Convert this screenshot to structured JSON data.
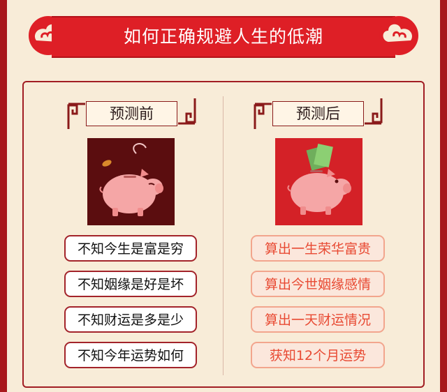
{
  "banner": {
    "title": "如何正确规避人生的低潮"
  },
  "before": {
    "heading": "预测前",
    "items": [
      "不知今生是富是穷",
      "不知姻缘是好是坏",
      "不知财运是多是少",
      "不知今年运势如何"
    ]
  },
  "after": {
    "heading": "预测后",
    "items": [
      "算出一生荣华富贵",
      "算出今世姻缘感情",
      "算出一天财运情况",
      "获知12个月运势"
    ]
  },
  "colors": {
    "outer": "#a8171c",
    "background": "#f8ecd8",
    "banner": "#de1f26",
    "accent_text": "#e84a33"
  },
  "icons": [
    "cloud-ornament-icon",
    "sad-piggy-bank-icon",
    "happy-piggy-bank-with-money-icon",
    "fret-corner-icon"
  ]
}
